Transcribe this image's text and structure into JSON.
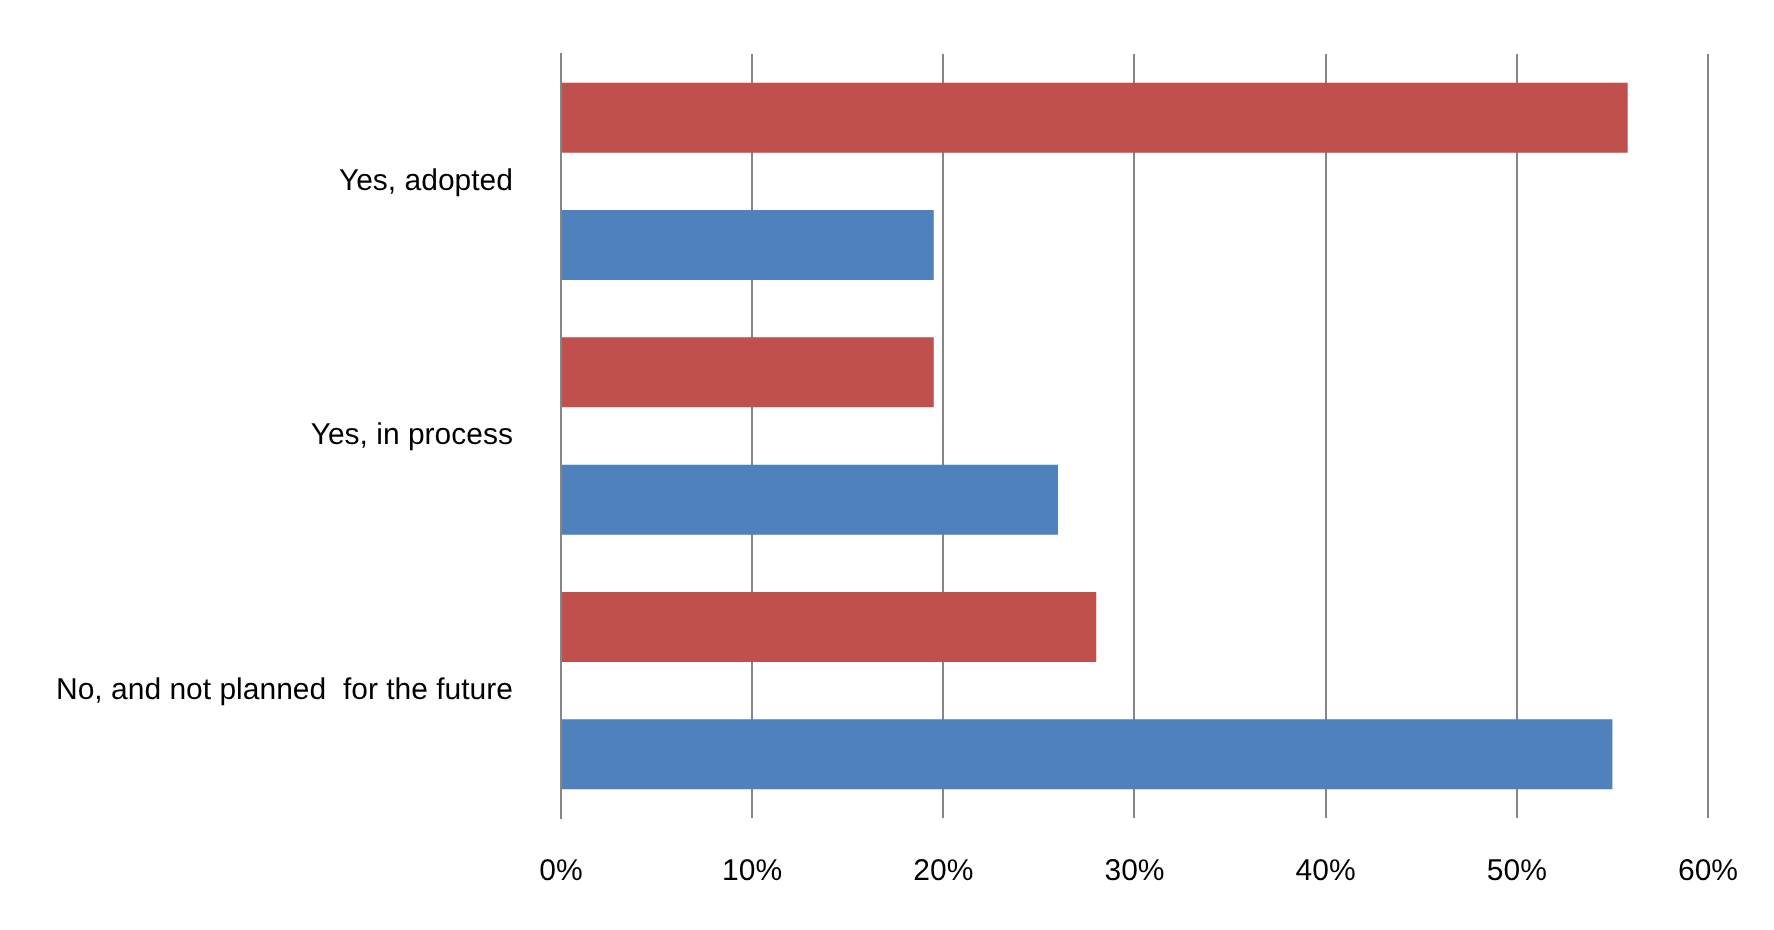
{
  "chart_data": {
    "type": "bar",
    "orientation": "horizontal",
    "categories": [
      "Yes, adopted",
      "Yes, in process",
      "No, and not planned  for the future"
    ],
    "series": [
      {
        "color": "#c0504d",
        "values": [
          55.8,
          19.5,
          28
        ]
      },
      {
        "color": "#4f81bd",
        "values": [
          19.5,
          26,
          55
        ]
      }
    ],
    "xlim": [
      0,
      60
    ],
    "xticks": [
      {
        "value": 0,
        "label": "0%"
      },
      {
        "value": 10,
        "label": "10%"
      },
      {
        "value": 20,
        "label": "20%"
      },
      {
        "value": 30,
        "label": "30%"
      },
      {
        "value": 40,
        "label": "40%"
      },
      {
        "value": 50,
        "label": "50%"
      },
      {
        "value": 60,
        "label": "60%"
      }
    ],
    "grid": "x",
    "legend": false
  }
}
